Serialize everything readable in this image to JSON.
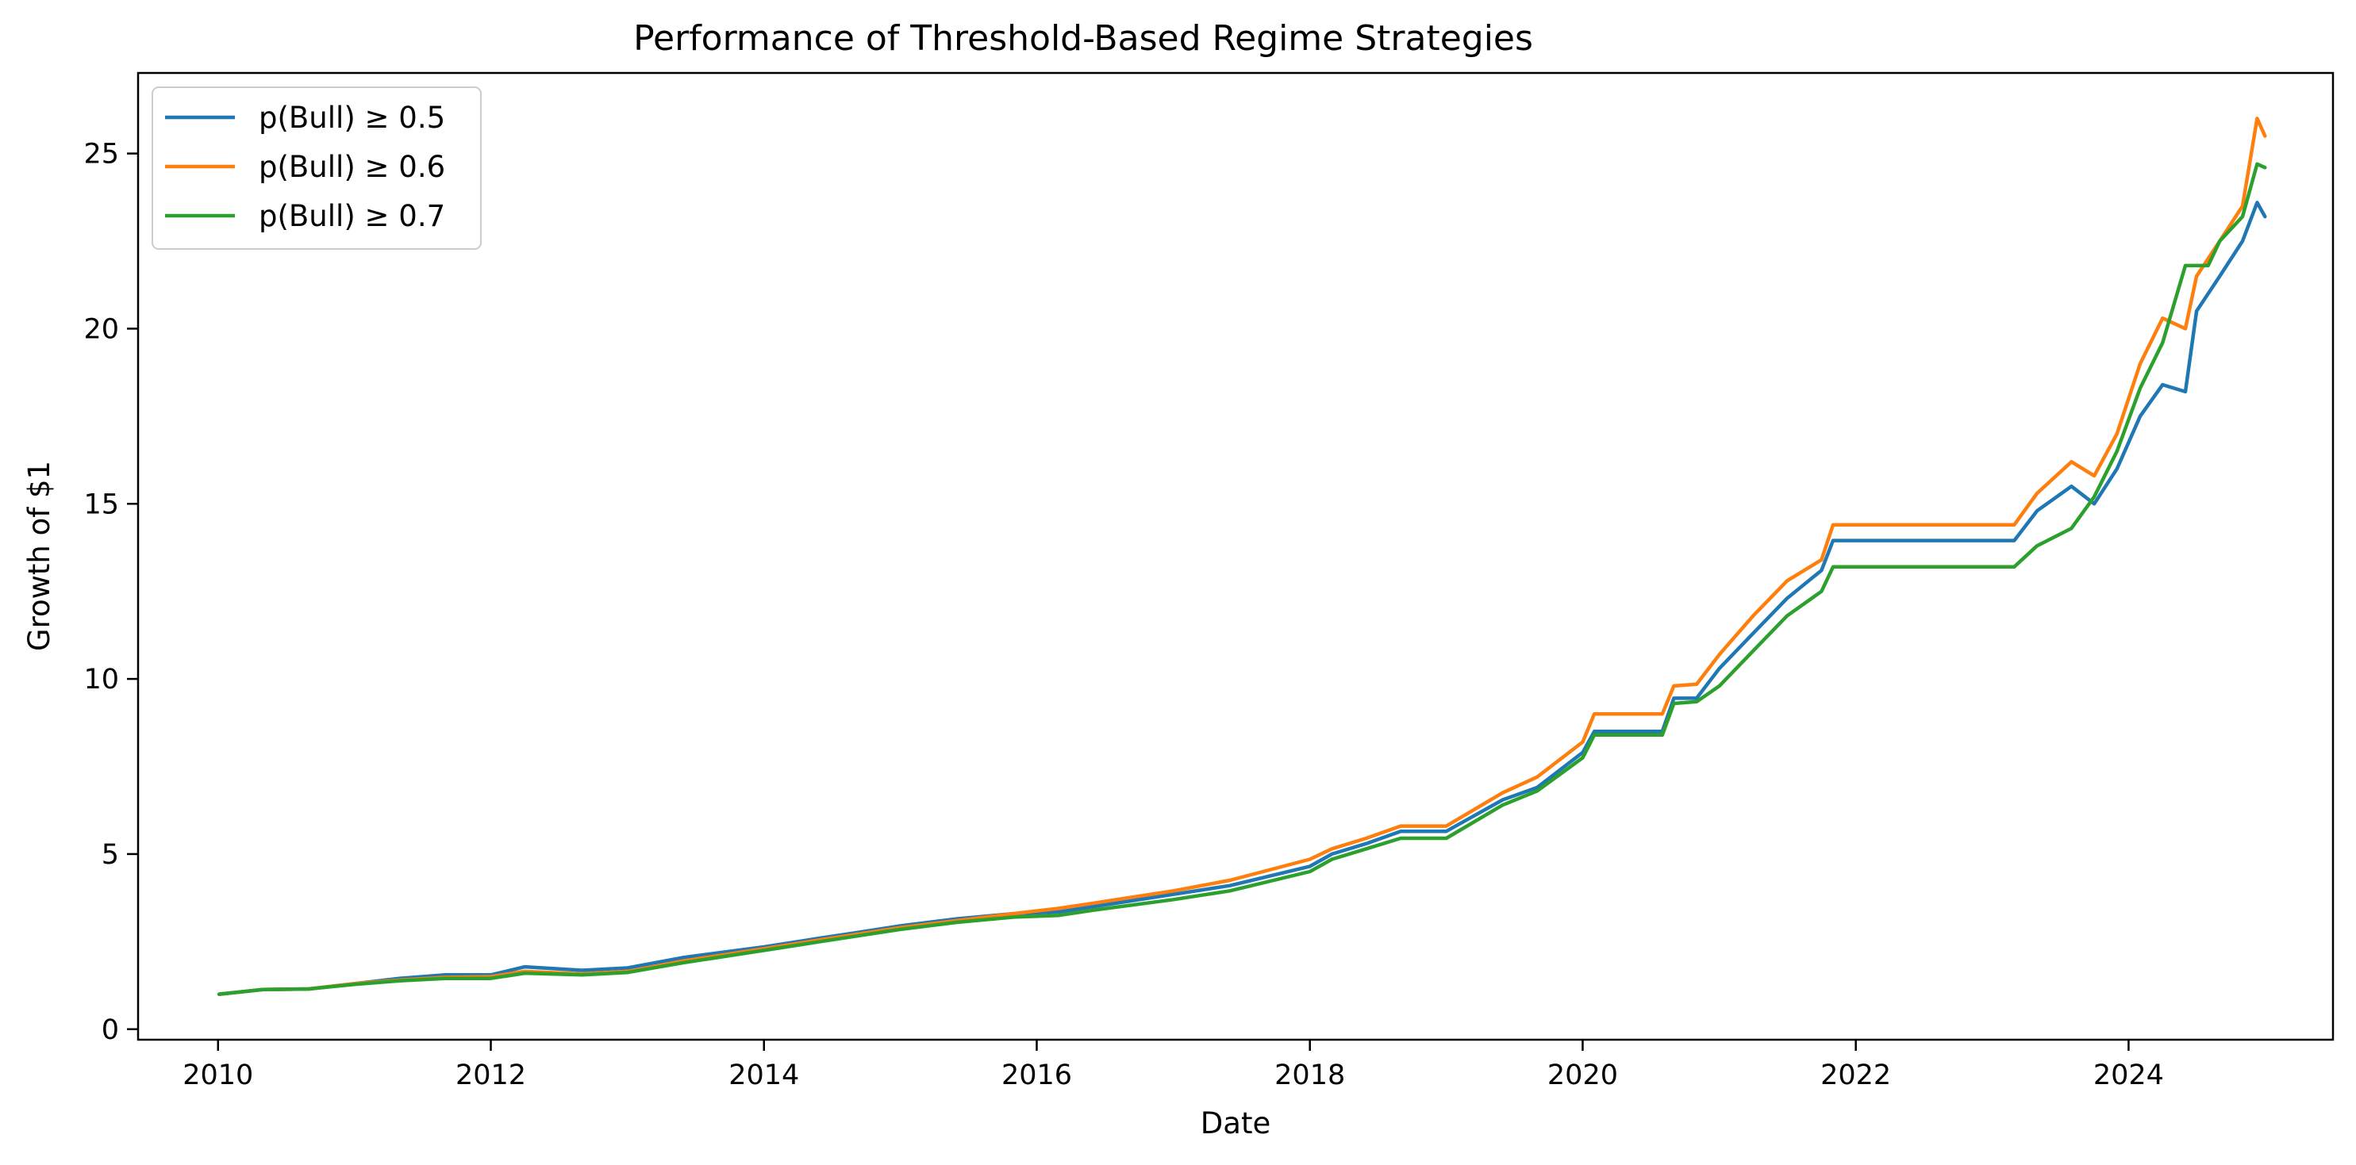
{
  "chart_data": {
    "type": "line",
    "title": "Performance of Threshold-Based Regime Strategies",
    "xlabel": "Date",
    "ylabel": "Growth of $1",
    "xlim": [
      "2009-06-01",
      "2025-07-01"
    ],
    "ylim": [
      -0.3,
      27.3
    ],
    "x_ticks": [
      "2010-01-01",
      "2012-01-01",
      "2014-01-01",
      "2016-01-01",
      "2018-01-01",
      "2020-01-01",
      "2022-01-01",
      "2024-01-01"
    ],
    "x_tick_labels": [
      "2010",
      "2012",
      "2014",
      "2016",
      "2018",
      "2020",
      "2022",
      "2024"
    ],
    "y_ticks": [
      0,
      5,
      10,
      15,
      20,
      25
    ],
    "y_tick_labels": [
      "0",
      "5",
      "10",
      "15",
      "20",
      "25"
    ],
    "grid": false,
    "legend_position": "top-left",
    "series": [
      {
        "name": "p(Bull) ≥ 0.5",
        "color": "#1f77b4",
        "points": [
          [
            "2010-01-04",
            1.0
          ],
          [
            "2010-05-01",
            1.13
          ],
          [
            "2010-09-01",
            1.15
          ],
          [
            "2011-01-01",
            1.3
          ],
          [
            "2011-05-01",
            1.45
          ],
          [
            "2011-09-01",
            1.55
          ],
          [
            "2012-01-01",
            1.55
          ],
          [
            "2012-04-01",
            1.78
          ],
          [
            "2012-09-01",
            1.68
          ],
          [
            "2013-01-01",
            1.75
          ],
          [
            "2013-06-01",
            2.05
          ],
          [
            "2014-01-01",
            2.35
          ],
          [
            "2014-06-01",
            2.6
          ],
          [
            "2014-09-01",
            2.75
          ],
          [
            "2015-01-01",
            2.95
          ],
          [
            "2015-06-01",
            3.15
          ],
          [
            "2015-11-01",
            3.3
          ],
          [
            "2016-03-01",
            3.35
          ],
          [
            "2016-06-01",
            3.5
          ],
          [
            "2017-01-01",
            3.85
          ],
          [
            "2017-06-01",
            4.1
          ],
          [
            "2018-01-01",
            4.65
          ],
          [
            "2018-03-01",
            5.0
          ],
          [
            "2018-06-01",
            5.3
          ],
          [
            "2018-09-01",
            5.65
          ],
          [
            "2019-01-01",
            5.65
          ],
          [
            "2019-06-01",
            6.55
          ],
          [
            "2019-09-01",
            6.9
          ],
          [
            "2020-01-01",
            7.9
          ],
          [
            "2020-02-01",
            8.5
          ],
          [
            "2020-08-01",
            8.5
          ],
          [
            "2020-09-01",
            9.45
          ],
          [
            "2020-11-01",
            9.45
          ],
          [
            "2021-01-01",
            10.3
          ],
          [
            "2021-04-01",
            11.3
          ],
          [
            "2021-07-01",
            12.3
          ],
          [
            "2021-10-01",
            13.1
          ],
          [
            "2021-11-01",
            13.95
          ],
          [
            "2023-03-01",
            13.95
          ],
          [
            "2023-05-01",
            14.8
          ],
          [
            "2023-08-01",
            15.5
          ],
          [
            "2023-10-01",
            15.0
          ],
          [
            "2023-12-01",
            16.0
          ],
          [
            "2024-02-01",
            17.5
          ],
          [
            "2024-04-01",
            18.4
          ],
          [
            "2024-06-01",
            18.2
          ],
          [
            "2024-07-01",
            20.5
          ],
          [
            "2024-09-01",
            21.5
          ],
          [
            "2024-11-01",
            22.5
          ],
          [
            "2024-12-10",
            23.6
          ],
          [
            "2024-12-31",
            23.2
          ]
        ]
      },
      {
        "name": "p(Bull) ≥ 0.6",
        "color": "#ff7f0e",
        "points": [
          [
            "2010-01-04",
            1.0
          ],
          [
            "2010-05-01",
            1.13
          ],
          [
            "2010-09-01",
            1.15
          ],
          [
            "2011-01-01",
            1.3
          ],
          [
            "2011-05-01",
            1.4
          ],
          [
            "2011-09-01",
            1.48
          ],
          [
            "2012-01-01",
            1.5
          ],
          [
            "2012-04-01",
            1.65
          ],
          [
            "2012-09-01",
            1.58
          ],
          [
            "2013-01-01",
            1.65
          ],
          [
            "2013-06-01",
            1.95
          ],
          [
            "2014-01-01",
            2.3
          ],
          [
            "2014-06-01",
            2.55
          ],
          [
            "2014-09-01",
            2.7
          ],
          [
            "2015-01-01",
            2.9
          ],
          [
            "2015-06-01",
            3.1
          ],
          [
            "2015-11-01",
            3.3
          ],
          [
            "2016-03-01",
            3.45
          ],
          [
            "2016-06-01",
            3.6
          ],
          [
            "2017-01-01",
            3.95
          ],
          [
            "2017-06-01",
            4.25
          ],
          [
            "2018-01-01",
            4.85
          ],
          [
            "2018-03-01",
            5.15
          ],
          [
            "2018-06-01",
            5.45
          ],
          [
            "2018-09-01",
            5.8
          ],
          [
            "2019-01-01",
            5.8
          ],
          [
            "2019-06-01",
            6.75
          ],
          [
            "2019-09-01",
            7.2
          ],
          [
            "2020-01-01",
            8.2
          ],
          [
            "2020-02-01",
            9.0
          ],
          [
            "2020-08-01",
            9.0
          ],
          [
            "2020-09-01",
            9.8
          ],
          [
            "2020-11-01",
            9.85
          ],
          [
            "2021-01-01",
            10.7
          ],
          [
            "2021-04-01",
            11.8
          ],
          [
            "2021-07-01",
            12.8
          ],
          [
            "2021-10-01",
            13.4
          ],
          [
            "2021-11-01",
            14.4
          ],
          [
            "2023-03-01",
            14.4
          ],
          [
            "2023-05-01",
            15.3
          ],
          [
            "2023-08-01",
            16.2
          ],
          [
            "2023-10-01",
            15.8
          ],
          [
            "2023-12-01",
            17.0
          ],
          [
            "2024-02-01",
            19.0
          ],
          [
            "2024-04-01",
            20.3
          ],
          [
            "2024-06-01",
            20.0
          ],
          [
            "2024-07-01",
            21.5
          ],
          [
            "2024-09-01",
            22.5
          ],
          [
            "2024-11-01",
            23.5
          ],
          [
            "2024-12-10",
            26.0
          ],
          [
            "2024-12-31",
            25.5
          ]
        ]
      },
      {
        "name": "p(Bull) ≥ 0.7",
        "color": "#2ca02c",
        "points": [
          [
            "2010-01-04",
            1.0
          ],
          [
            "2010-05-01",
            1.13
          ],
          [
            "2010-09-01",
            1.15
          ],
          [
            "2011-01-01",
            1.28
          ],
          [
            "2011-05-01",
            1.38
          ],
          [
            "2011-09-01",
            1.45
          ],
          [
            "2012-01-01",
            1.45
          ],
          [
            "2012-04-01",
            1.6
          ],
          [
            "2012-09-01",
            1.55
          ],
          [
            "2013-01-01",
            1.62
          ],
          [
            "2013-06-01",
            1.9
          ],
          [
            "2014-01-01",
            2.25
          ],
          [
            "2014-06-01",
            2.5
          ],
          [
            "2014-09-01",
            2.65
          ],
          [
            "2015-01-01",
            2.85
          ],
          [
            "2015-06-01",
            3.05
          ],
          [
            "2015-11-01",
            3.2
          ],
          [
            "2016-03-01",
            3.25
          ],
          [
            "2016-06-01",
            3.4
          ],
          [
            "2017-01-01",
            3.7
          ],
          [
            "2017-06-01",
            3.95
          ],
          [
            "2018-01-01",
            4.5
          ],
          [
            "2018-03-01",
            4.85
          ],
          [
            "2018-06-01",
            5.15
          ],
          [
            "2018-09-01",
            5.45
          ],
          [
            "2019-01-01",
            5.45
          ],
          [
            "2019-06-01",
            6.4
          ],
          [
            "2019-09-01",
            6.8
          ],
          [
            "2020-01-01",
            7.75
          ],
          [
            "2020-02-01",
            8.4
          ],
          [
            "2020-08-01",
            8.4
          ],
          [
            "2020-09-01",
            9.3
          ],
          [
            "2020-11-01",
            9.35
          ],
          [
            "2021-01-01",
            9.8
          ],
          [
            "2021-04-01",
            10.8
          ],
          [
            "2021-07-01",
            11.8
          ],
          [
            "2021-10-01",
            12.5
          ],
          [
            "2021-11-01",
            13.2
          ],
          [
            "2023-03-01",
            13.2
          ],
          [
            "2023-05-01",
            13.8
          ],
          [
            "2023-08-01",
            14.3
          ],
          [
            "2023-10-01",
            15.2
          ],
          [
            "2023-12-01",
            16.5
          ],
          [
            "2024-02-01",
            18.3
          ],
          [
            "2024-04-01",
            19.6
          ],
          [
            "2024-06-01",
            21.8
          ],
          [
            "2024-08-01",
            21.8
          ],
          [
            "2024-09-01",
            22.5
          ],
          [
            "2024-11-01",
            23.2
          ],
          [
            "2024-12-10",
            24.7
          ],
          [
            "2024-12-31",
            24.6
          ]
        ]
      }
    ]
  }
}
